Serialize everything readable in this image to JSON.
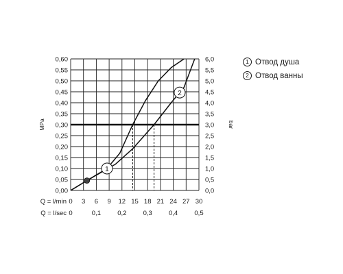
{
  "chart_data": {
    "type": "line",
    "y_left": {
      "label": "MPa",
      "ticks": [
        "0,00",
        "0,05",
        "0,10",
        "0,15",
        "0,20",
        "0,25",
        "0,30",
        "0,35",
        "0,40",
        "0,45",
        "0,50",
        "0,55",
        "0,60"
      ],
      "range": [
        0,
        0.6
      ]
    },
    "y_right": {
      "label": "bar",
      "ticks": [
        "0,0",
        "0,5",
        "1,0",
        "1,5",
        "2,0",
        "2,5",
        "3,0",
        "3,5",
        "4,0",
        "4,5",
        "5,0",
        "5,5",
        "6,0"
      ],
      "range": [
        0,
        6
      ]
    },
    "x_lmin": {
      "label": "Q = l/min",
      "ticks": [
        "0",
        "3",
        "6",
        "9",
        "12",
        "15",
        "18",
        "21",
        "24",
        "27",
        "30"
      ],
      "range": [
        0,
        30
      ]
    },
    "x_lsec": {
      "label": "Q = l/sec",
      "ticks": [
        "0",
        "0,1",
        "0,2",
        "0,3",
        "0,4",
        "0,5"
      ]
    },
    "grid": true,
    "reference_line": {
      "y": 0.3
    },
    "series": [
      {
        "id": "1",
        "name": "Отвод душа",
        "x": [
          0,
          3.8,
          8.5,
          11.5,
          14.5,
          17.5,
          20.5,
          23.5,
          26.5
        ],
        "y": [
          0,
          0.045,
          0.1,
          0.17,
          0.3,
          0.41,
          0.5,
          0.56,
          0.6
        ],
        "marker_at": 8.5
      },
      {
        "id": "2",
        "name": "Отвод ванны",
        "x": [
          0,
          3.8,
          10.5,
          14.5,
          19.5,
          23.5,
          26.5,
          29
        ],
        "y": [
          0,
          0.045,
          0.12,
          0.19,
          0.3,
          0.4,
          0.47,
          0.6
        ],
        "marker_at": 25.5
      }
    ],
    "drop_lines": [
      {
        "x": 14.5,
        "y": 0.3
      },
      {
        "x": 19.5,
        "y": 0.3
      }
    ],
    "highlight_point": {
      "x": 3.8,
      "y": 0.045
    }
  },
  "legend": [
    {
      "marker": "1",
      "label": "Отвод душа"
    },
    {
      "marker": "2",
      "label": "Отвод ванны"
    }
  ]
}
